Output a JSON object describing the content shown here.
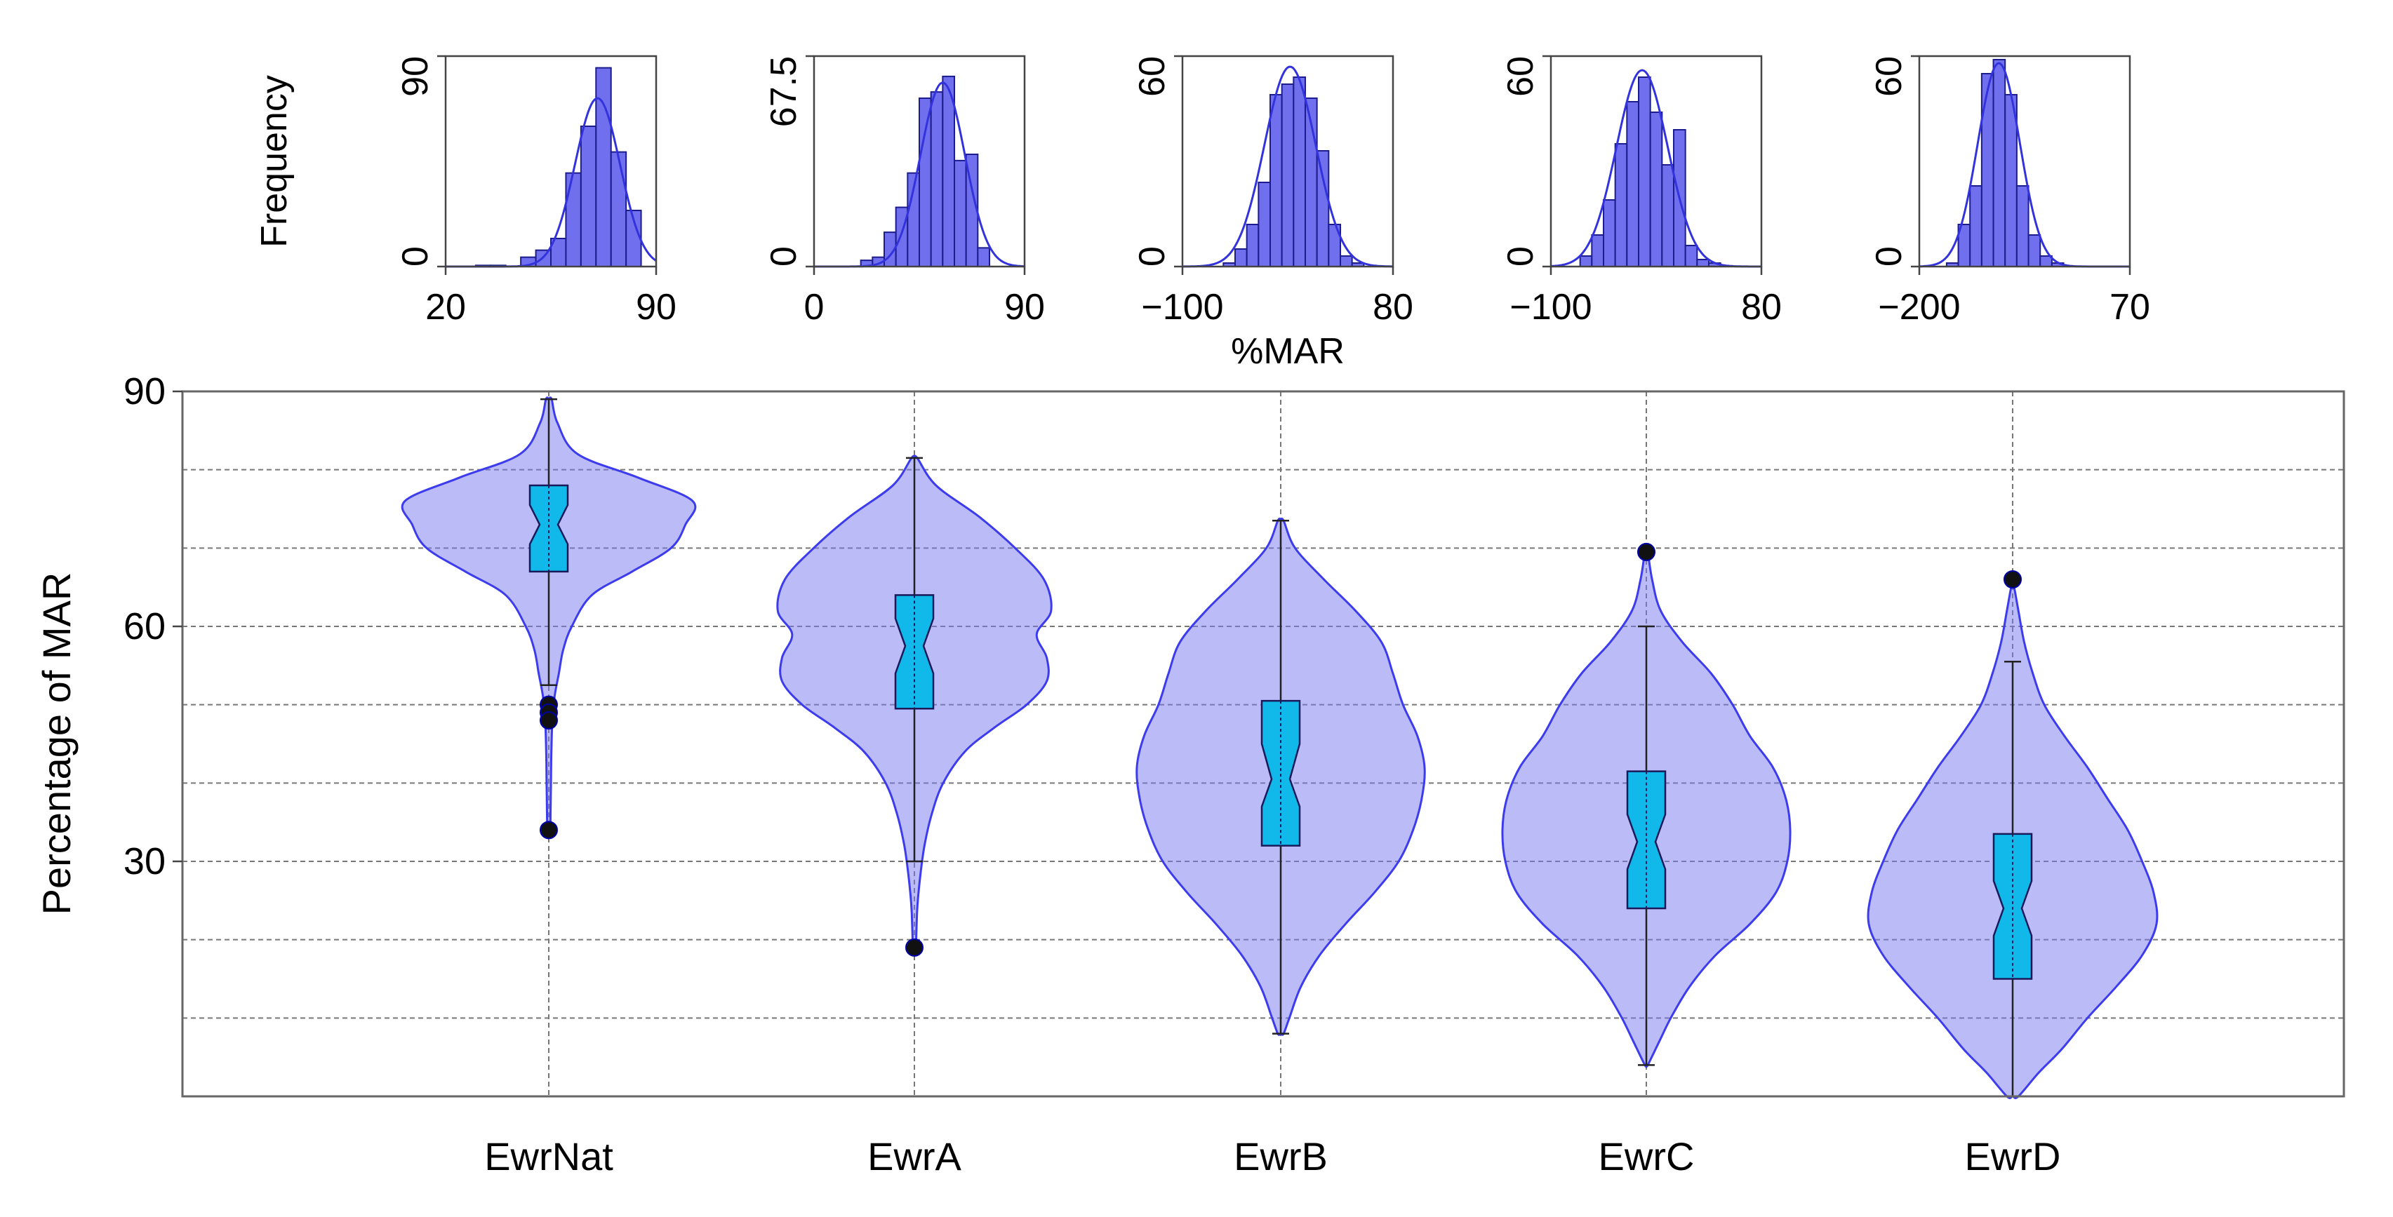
{
  "chart_data": [
    {
      "type": "histogram",
      "panel": "EwrNat",
      "ylabel": "Frequency",
      "xtick_labels": [
        "20",
        "90"
      ],
      "ytick_labels": [
        "0",
        "90"
      ],
      "xlim": [
        20,
        90
      ],
      "ylim": [
        0,
        90
      ],
      "bins": [
        {
          "x0": 30,
          "x1": 35,
          "count": 0.5
        },
        {
          "x0": 35,
          "x1": 40,
          "count": 0.5
        },
        {
          "x0": 45,
          "x1": 50,
          "count": 4
        },
        {
          "x0": 50,
          "x1": 55,
          "count": 7
        },
        {
          "x0": 55,
          "x1": 60,
          "count": 12
        },
        {
          "x0": 60,
          "x1": 65,
          "count": 40
        },
        {
          "x0": 65,
          "x1": 70,
          "count": 60
        },
        {
          "x0": 70,
          "x1": 75,
          "count": 85
        },
        {
          "x0": 75,
          "x1": 80,
          "count": 49
        },
        {
          "x0": 80,
          "x1": 85,
          "count": 24
        }
      ],
      "density": {
        "mean": 70.5,
        "sd": 7.5,
        "peak": 72
      }
    },
    {
      "type": "histogram",
      "panel": "EwrA",
      "xtick_labels": [
        "0",
        "90"
      ],
      "ytick_labels": [
        "0",
        "67.5"
      ],
      "xlim": [
        0,
        90
      ],
      "ylim": [
        0,
        67.5
      ],
      "bins": [
        {
          "x0": 20,
          "x1": 25,
          "count": 2
        },
        {
          "x0": 25,
          "x1": 30,
          "count": 3
        },
        {
          "x0": 30,
          "x1": 35,
          "count": 11
        },
        {
          "x0": 35,
          "x1": 40,
          "count": 19
        },
        {
          "x0": 40,
          "x1": 45,
          "count": 30
        },
        {
          "x0": 45,
          "x1": 50,
          "count": 54
        },
        {
          "x0": 50,
          "x1": 55,
          "count": 56
        },
        {
          "x0": 55,
          "x1": 60,
          "count": 61
        },
        {
          "x0": 60,
          "x1": 65,
          "count": 34
        },
        {
          "x0": 65,
          "x1": 70,
          "count": 36
        },
        {
          "x0": 70,
          "x1": 75,
          "count": 6
        }
      ],
      "density": {
        "mean": 55,
        "sd": 9.5,
        "peak": 59
      }
    },
    {
      "type": "histogram",
      "panel": "EwrB",
      "xlabel": "%MAR",
      "xtick_labels": [
        "−100",
        "80"
      ],
      "ytick_labels": [
        "0",
        "60"
      ],
      "xlim": [
        -100,
        80
      ],
      "ylim": [
        0,
        60
      ],
      "bins": [
        {
          "x0": -65,
          "x1": -55,
          "count": 1
        },
        {
          "x0": -55,
          "x1": -45,
          "count": 5
        },
        {
          "x0": -45,
          "x1": -35,
          "count": 12
        },
        {
          "x0": -35,
          "x1": -25,
          "count": 24
        },
        {
          "x0": -25,
          "x1": -15,
          "count": 49
        },
        {
          "x0": -15,
          "x1": -5,
          "count": 52
        },
        {
          "x0": -5,
          "x1": 5,
          "count": 54
        },
        {
          "x0": 5,
          "x1": 15,
          "count": 48
        },
        {
          "x0": 15,
          "x1": 25,
          "count": 33
        },
        {
          "x0": 25,
          "x1": 35,
          "count": 12
        },
        {
          "x0": 35,
          "x1": 45,
          "count": 3
        },
        {
          "x0": 45,
          "x1": 55,
          "count": 1
        }
      ],
      "density": {
        "mean": -8,
        "sd": 22,
        "peak": 57
      }
    },
    {
      "type": "histogram",
      "panel": "EwrC",
      "xtick_labels": [
        "−100",
        "80"
      ],
      "ytick_labels": [
        "0",
        "60"
      ],
      "xlim": [
        -100,
        80
      ],
      "ylim": [
        0,
        60
      ],
      "bins": [
        {
          "x0": -75,
          "x1": -65,
          "count": 3
        },
        {
          "x0": -65,
          "x1": -55,
          "count": 9
        },
        {
          "x0": -55,
          "x1": -45,
          "count": 19
        },
        {
          "x0": -45,
          "x1": -35,
          "count": 35
        },
        {
          "x0": -35,
          "x1": -25,
          "count": 47
        },
        {
          "x0": -25,
          "x1": -15,
          "count": 54
        },
        {
          "x0": -15,
          "x1": -5,
          "count": 44
        },
        {
          "x0": -5,
          "x1": 5,
          "count": 29
        },
        {
          "x0": 5,
          "x1": 15,
          "count": 39
        },
        {
          "x0": 15,
          "x1": 25,
          "count": 6
        },
        {
          "x0": 25,
          "x1": 35,
          "count": 2
        },
        {
          "x0": 35,
          "x1": 45,
          "count": 1
        }
      ],
      "density": {
        "mean": -22,
        "sd": 22,
        "peak": 56
      }
    },
    {
      "type": "histogram",
      "panel": "EwrD",
      "xtick_labels": [
        "−200",
        "70"
      ],
      "ytick_labels": [
        "0",
        "60"
      ],
      "xlim": [
        -200,
        70
      ],
      "ylim": [
        0,
        60
      ],
      "bins": [
        {
          "x0": -165,
          "x1": -150,
          "count": 1
        },
        {
          "x0": -150,
          "x1": -135,
          "count": 12
        },
        {
          "x0": -135,
          "x1": -120,
          "count": 23
        },
        {
          "x0": -120,
          "x1": -105,
          "count": 55
        },
        {
          "x0": -105,
          "x1": -90,
          "count": 59
        },
        {
          "x0": -90,
          "x1": -75,
          "count": 49
        },
        {
          "x0": -75,
          "x1": -60,
          "count": 23
        },
        {
          "x0": -60,
          "x1": -45,
          "count": 9
        },
        {
          "x0": -45,
          "x1": -30,
          "count": 3
        },
        {
          "x0": -30,
          "x1": -15,
          "count": 1
        }
      ],
      "density": {
        "mean": -98,
        "sd": 27,
        "peak": 58
      }
    },
    {
      "type": "violin",
      "ylabel": "Percentage of MAR",
      "ylim": [
        0,
        90
      ],
      "ytick_labels": [
        "30",
        "60",
        "90"
      ],
      "grid": true,
      "categories": [
        "EwrNat",
        "EwrA",
        "EwrB",
        "EwrC",
        "EwrD"
      ],
      "series": [
        {
          "name": "EwrNat",
          "whisker_low": 52.5,
          "whisker_high": 89,
          "q1": 67,
          "median": 73,
          "q3": 78,
          "notch_low": 70.5,
          "notch_high": 75.5,
          "outliers": [
            50,
            49,
            48,
            34
          ],
          "profile": [
            [
              89,
              0.02
            ],
            [
              86,
              0.06
            ],
            [
              82,
              0.2
            ],
            [
              79,
              0.62
            ],
            [
              76,
              1.0
            ],
            [
              73,
              0.95
            ],
            [
              70,
              0.85
            ],
            [
              67,
              0.58
            ],
            [
              64,
              0.3
            ],
            [
              60,
              0.16
            ],
            [
              57,
              0.1
            ],
            [
              54,
              0.07
            ],
            [
              51,
              0.04
            ],
            [
              48,
              0.025
            ],
            [
              44,
              0.018
            ],
            [
              40,
              0.015
            ],
            [
              36,
              0.012
            ],
            [
              34,
              0.01
            ]
          ]
        },
        {
          "name": "EwrA",
          "whisker_low": 30,
          "whisker_high": 81.5,
          "q1": 49.5,
          "median": 57.5,
          "q3": 64,
          "notch_low": 54,
          "notch_high": 61,
          "outliers": [
            19
          ],
          "profile": [
            [
              81.5,
              0.02
            ],
            [
              78,
              0.15
            ],
            [
              74,
              0.45
            ],
            [
              70,
              0.7
            ],
            [
              66,
              0.9
            ],
            [
              62,
              0.95
            ],
            [
              59,
              0.85
            ],
            [
              56,
              0.92
            ],
            [
              53,
              0.92
            ],
            [
              50,
              0.78
            ],
            [
              47,
              0.55
            ],
            [
              44,
              0.35
            ],
            [
              40,
              0.2
            ],
            [
              36,
              0.12
            ],
            [
              32,
              0.07
            ],
            [
              28,
              0.04
            ],
            [
              24,
              0.02
            ],
            [
              19,
              0.01
            ]
          ]
        },
        {
          "name": "EwrB",
          "whisker_low": 8,
          "whisker_high": 73.5,
          "q1": 32,
          "median": 40.5,
          "q3": 50.5,
          "notch_low": 37,
          "notch_high": 45,
          "outliers": [],
          "profile": [
            [
              73.5,
              0.02
            ],
            [
              70,
              0.1
            ],
            [
              66,
              0.3
            ],
            [
              62,
              0.52
            ],
            [
              58,
              0.7
            ],
            [
              54,
              0.78
            ],
            [
              50,
              0.85
            ],
            [
              46,
              0.95
            ],
            [
              42,
              1.0
            ],
            [
              38,
              0.98
            ],
            [
              34,
              0.92
            ],
            [
              30,
              0.82
            ],
            [
              26,
              0.65
            ],
            [
              22,
              0.45
            ],
            [
              18,
              0.27
            ],
            [
              14,
              0.14
            ],
            [
              10,
              0.06
            ],
            [
              8,
              0.02
            ]
          ]
        },
        {
          "name": "EwrC",
          "whisker_low": 4,
          "whisker_high": 60,
          "q1": 24,
          "median": 32.5,
          "q3": 41.5,
          "notch_low": 29,
          "notch_high": 36,
          "outliers": [
            69.5
          ],
          "profile": [
            [
              69.5,
              0.01
            ],
            [
              66,
              0.04
            ],
            [
              62,
              0.1
            ],
            [
              58,
              0.25
            ],
            [
              54,
              0.45
            ],
            [
              50,
              0.6
            ],
            [
              46,
              0.72
            ],
            [
              42,
              0.88
            ],
            [
              38,
              0.97
            ],
            [
              34,
              1.0
            ],
            [
              30,
              0.98
            ],
            [
              26,
              0.9
            ],
            [
              22,
              0.72
            ],
            [
              18,
              0.48
            ],
            [
              14,
              0.3
            ],
            [
              10,
              0.17
            ],
            [
              7,
              0.09
            ],
            [
              4,
              0.01
            ]
          ]
        },
        {
          "name": "EwrD",
          "whisker_low": 0,
          "whisker_high": 55.5,
          "q1": 15,
          "median": 24,
          "q3": 33.5,
          "notch_low": 20.5,
          "notch_high": 27.5,
          "outliers": [
            66
          ],
          "profile": [
            [
              65,
              0.01
            ],
            [
              62,
              0.04
            ],
            [
              58,
              0.08
            ],
            [
              54,
              0.14
            ],
            [
              50,
              0.22
            ],
            [
              46,
              0.36
            ],
            [
              42,
              0.52
            ],
            [
              38,
              0.66
            ],
            [
              34,
              0.8
            ],
            [
              30,
              0.9
            ],
            [
              26,
              0.98
            ],
            [
              22,
              1.0
            ],
            [
              18,
              0.9
            ],
            [
              14,
              0.72
            ],
            [
              10,
              0.52
            ],
            [
              6,
              0.34
            ],
            [
              3,
              0.18
            ],
            [
              0,
              0.04
            ]
          ]
        }
      ]
    }
  ]
}
